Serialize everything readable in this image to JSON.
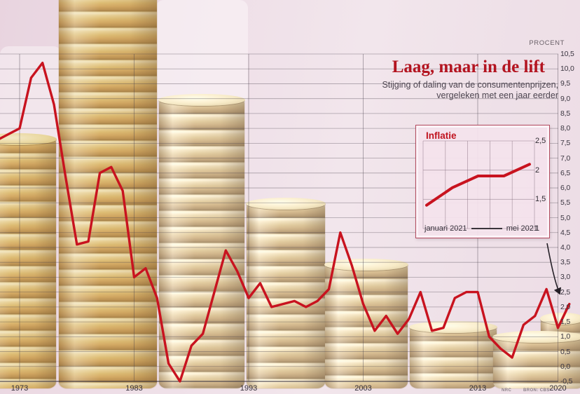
{
  "header": {
    "unit_label": "PROCENT",
    "title": "Laag, maar in de lift",
    "subtitle_line1": "Stijging of daling van de consumentenprijzen,",
    "subtitle_line2": "vergeleken met een jaar eerder"
  },
  "credits": {
    "agency": "NRC",
    "source": "BRON: CBS"
  },
  "colors": {
    "line_red": "#c8131f",
    "title_red": "#b31420",
    "background_pink": "#eedfe8",
    "inset_border": "#b24a5e",
    "grid_grey": "#4a4450",
    "coin_gold": "#dab967"
  },
  "chart_data": [
    {
      "id": "main",
      "type": "line",
      "title": "Laag, maar in de lift",
      "subtitle": "Stijging of daling van de consumentenprijzen, vergeleken met een jaar eerder",
      "ylabel": "PROCENT",
      "ylim": [
        -0.5,
        10.5
      ],
      "grid": true,
      "axis_side": "right",
      "y_tick_labels": [
        "10,5",
        "10,0",
        "9,5",
        "9,0",
        "8,5",
        "8,0",
        "7,5",
        "7,0",
        "6,5",
        "6,0",
        "5,5",
        "5,0",
        "4,5",
        "4,0",
        "3,5",
        "3,0",
        "2,5",
        "2,0",
        "1,5",
        "1,0",
        "0,5",
        "0,0",
        "-0,5"
      ],
      "x_ticks": [
        {
          "label": "1973",
          "year": 1973
        },
        {
          "label": "1983",
          "year": 1983
        },
        {
          "label": "1993",
          "year": 1993
        },
        {
          "label": "2003",
          "year": 2003
        },
        {
          "label": "2013",
          "year": 2013
        },
        {
          "label": "2020",
          "year": 2020
        }
      ],
      "years": [
        1971,
        1972,
        1973,
        1974,
        1975,
        1976,
        1977,
        1978,
        1979,
        1980,
        1981,
        1982,
        1983,
        1984,
        1985,
        1986,
        1987,
        1988,
        1989,
        1990,
        1991,
        1992,
        1993,
        1994,
        1995,
        1996,
        1997,
        1998,
        1999,
        2000,
        2001,
        2002,
        2003,
        2004,
        2005,
        2006,
        2007,
        2008,
        2009,
        2010,
        2011,
        2012,
        2013,
        2014,
        2015,
        2016,
        2017,
        2018,
        2019,
        2020,
        2021
      ],
      "values": [
        7.6,
        7.8,
        8.0,
        9.7,
        10.2,
        8.8,
        6.4,
        4.1,
        4.2,
        6.5,
        6.7,
        5.9,
        3.0,
        3.3,
        2.3,
        0.1,
        -0.5,
        0.7,
        1.1,
        2.5,
        3.9,
        3.2,
        2.3,
        2.8,
        2.0,
        2.1,
        2.2,
        2.0,
        2.2,
        2.6,
        4.5,
        3.4,
        2.1,
        1.2,
        1.7,
        1.1,
        1.6,
        2.5,
        1.2,
        1.3,
        2.3,
        2.5,
        2.5,
        1.0,
        0.6,
        0.3,
        1.4,
        1.7,
        2.6,
        1.3,
        2.1
      ]
    },
    {
      "id": "inset",
      "type": "line",
      "title": "Inflatie",
      "x_start_label": "januari 2021",
      "x_end_label": "mei 2021",
      "months": [
        "januari",
        "februari",
        "maart",
        "april",
        "mei"
      ],
      "values": [
        1.4,
        1.7,
        1.9,
        1.9,
        2.1
      ],
      "ylim": [
        1,
        2.5
      ],
      "y_ticks": [
        {
          "label": "2,5",
          "value": 2.5
        },
        {
          "label": "2",
          "value": 2.0
        },
        {
          "label": "1,5",
          "value": 1.5
        },
        {
          "label": "1",
          "value": 1.0
        }
      ]
    }
  ]
}
